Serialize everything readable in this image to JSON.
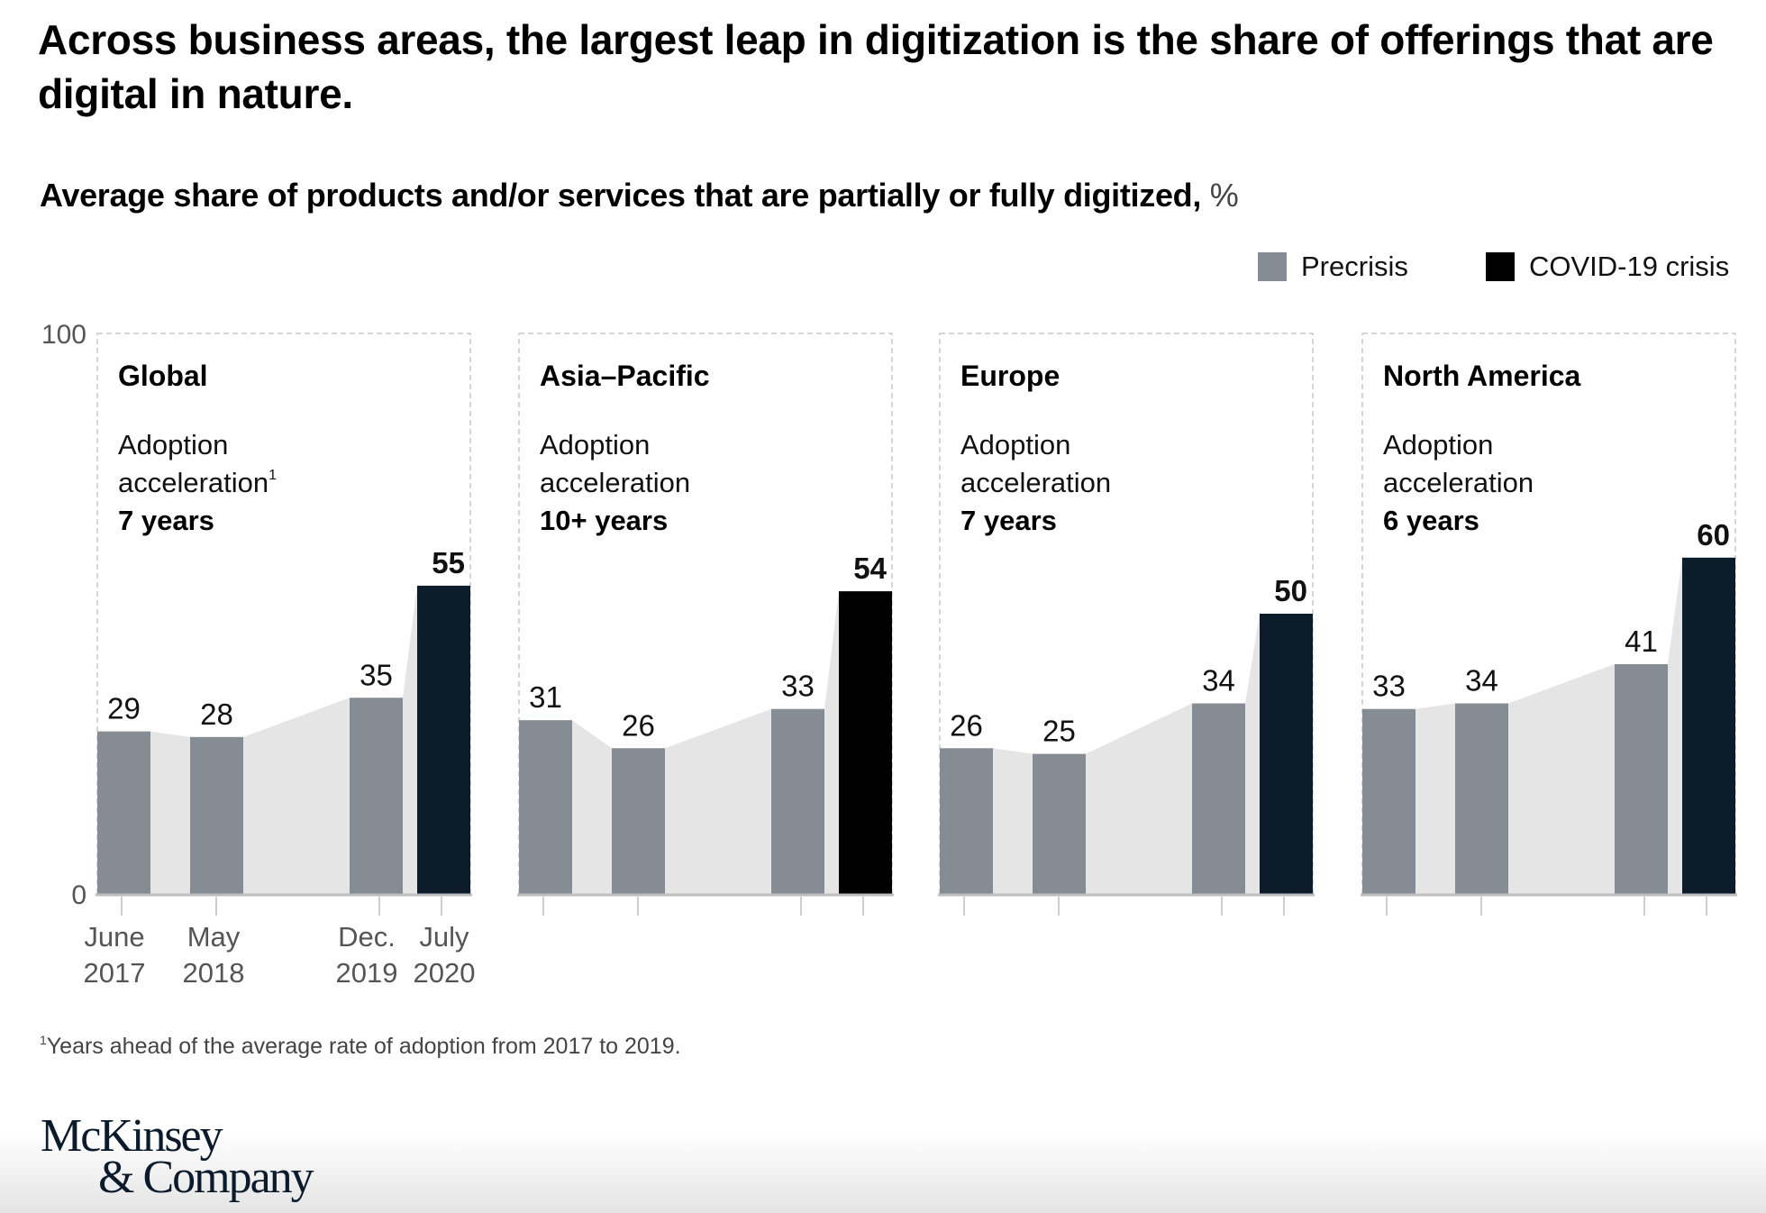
{
  "title": "Across business areas, the largest leap in digitization is the share of offerings that are digital in nature.",
  "subtitle": "Average share of products and/or services that are partially or fully digitized,",
  "subtitle_unit": "%",
  "legend": [
    {
      "label": "Precrisis",
      "color": "#868c93"
    },
    {
      "label": "COVID-19 crisis",
      "color": "#000000"
    }
  ],
  "footnote_marker": "1",
  "footnote": "Years ahead of the average rate of adoption from 2017 to 2019.",
  "logo": {
    "line1": "McKinsey",
    "line2": "& Company"
  },
  "chart_data": {
    "type": "bar",
    "title": "Average share of products and/or services that are partially or fully digitized, %",
    "xlabel": "",
    "ylabel": "%",
    "ylim": [
      0,
      100
    ],
    "yticks": [
      "0",
      "100"
    ],
    "categories": [
      "June 2017",
      "May 2018",
      "Dec. 2019",
      "July 2020"
    ],
    "category_lines": [
      [
        "June",
        "2017"
      ],
      [
        "May",
        "2018"
      ],
      [
        "Dec.",
        "2019"
      ],
      [
        "July",
        "2020"
      ]
    ],
    "category_time_index": [
      0,
      11,
      30,
      37
    ],
    "legend_position": "top-right",
    "colors": {
      "precrisis": "#868c93",
      "covid": "#0d1c2b",
      "covid_asia": "#000000",
      "area": "#e5e5e5",
      "axis": "#bdbdbd",
      "panel_border": "#c8c8c8"
    },
    "panels": [
      {
        "region": "Global",
        "acceleration_label": "Adoption",
        "acceleration_label2": "acceleration",
        "footnote_ref": "1",
        "acceleration_value": "7 years",
        "values": [
          29,
          28,
          35,
          55
        ],
        "series": [
          {
            "name": "Precrisis",
            "values": [
              29,
              28,
              35,
              null
            ]
          },
          {
            "name": "COVID-19 crisis",
            "values": [
              null,
              null,
              null,
              55
            ]
          }
        ],
        "show_x_labels": true
      },
      {
        "region": "Asia–Pacific",
        "acceleration_label": "Adoption",
        "acceleration_label2": "acceleration",
        "footnote_ref": "",
        "acceleration_value": "10+ years",
        "values": [
          31,
          26,
          33,
          54
        ],
        "series": [
          {
            "name": "Precrisis",
            "values": [
              31,
              26,
              33,
              null
            ]
          },
          {
            "name": "COVID-19 crisis",
            "values": [
              null,
              null,
              null,
              54
            ]
          }
        ],
        "show_x_labels": false
      },
      {
        "region": "Europe",
        "acceleration_label": "Adoption",
        "acceleration_label2": "acceleration",
        "footnote_ref": "",
        "acceleration_value": "7 years",
        "values": [
          26,
          25,
          34,
          50
        ],
        "series": [
          {
            "name": "Precrisis",
            "values": [
              26,
              25,
              34,
              null
            ]
          },
          {
            "name": "COVID-19 crisis",
            "values": [
              null,
              null,
              null,
              50
            ]
          }
        ],
        "show_x_labels": false
      },
      {
        "region": "North America",
        "acceleration_label": "Adoption",
        "acceleration_label2": "acceleration",
        "footnote_ref": "",
        "acceleration_value": "6 years",
        "values": [
          33,
          34,
          41,
          60
        ],
        "series": [
          {
            "name": "Precrisis",
            "values": [
              33,
              34,
              41,
              null
            ]
          },
          {
            "name": "COVID-19 crisis",
            "values": [
              null,
              null,
              null,
              60
            ]
          }
        ],
        "show_x_labels": false
      }
    ]
  }
}
